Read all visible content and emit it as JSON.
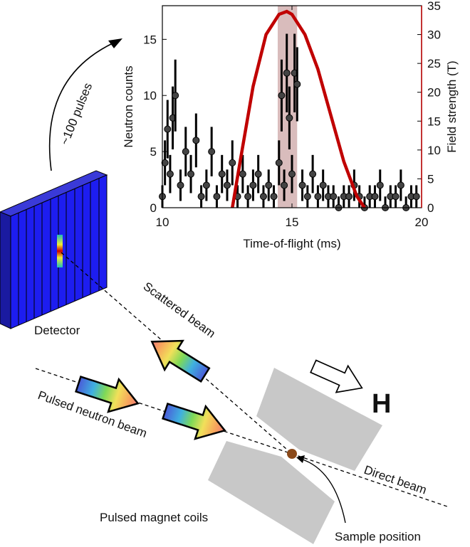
{
  "chart_data": {
    "type": "scatter",
    "xlabel": "Time-of-flight (ms)",
    "ylabel": "Neutron counts",
    "y2label": "Field strength (T)",
    "xlim": [
      10,
      20
    ],
    "xticks": [
      10,
      15,
      20
    ],
    "ylim": [
      0,
      18
    ],
    "yticks": [
      0,
      5,
      10,
      15
    ],
    "y2lim": [
      0,
      35
    ],
    "y2ticks": [
      0,
      5,
      10,
      15,
      20,
      25,
      30,
      35
    ],
    "color": "#444444",
    "x": [
      10.0,
      10.1,
      10.2,
      10.3,
      10.4,
      10.5,
      10.7,
      10.9,
      11.1,
      11.3,
      11.5,
      11.7,
      11.9,
      12.1,
      12.3,
      12.5,
      12.7,
      12.9,
      13.1,
      13.3,
      13.5,
      13.7,
      13.9,
      14.1,
      14.3,
      14.5,
      14.6,
      14.7,
      14.8,
      14.9,
      15.0,
      15.1,
      15.2,
      15.4,
      15.6,
      15.8,
      16.0,
      16.2,
      16.4,
      16.6,
      16.8,
      17.0,
      17.2,
      17.4,
      17.6,
      17.8,
      18.0,
      18.2,
      18.4,
      18.6,
      18.8,
      19.0,
      19.2,
      19.4,
      19.6,
      19.8
    ],
    "values": [
      1,
      4,
      7,
      3,
      8,
      10,
      2,
      5,
      3,
      6,
      1,
      2,
      5,
      1,
      3,
      2,
      4,
      1,
      3,
      1,
      2,
      3,
      1,
      2,
      1,
      4,
      10,
      2,
      12,
      8,
      3,
      12,
      11,
      2,
      1,
      3,
      1,
      2,
      1,
      1,
      0,
      1,
      1,
      2,
      1,
      0,
      1,
      1,
      2,
      0,
      1,
      1,
      2,
      0,
      1,
      1
    ],
    "errors": [
      1,
      2,
      2.6,
      1.7,
      2.8,
      3.2,
      1.4,
      2.2,
      1.7,
      2.4,
      1,
      1.4,
      2.2,
      1,
      1.7,
      1.4,
      2,
      1,
      1.7,
      1,
      1.4,
      1.7,
      1,
      1.4,
      1,
      2,
      3.2,
      1.4,
      3.5,
      2.8,
      1.7,
      3.5,
      3.3,
      1.4,
      1,
      1.7,
      1,
      1.4,
      1,
      1,
      1,
      1,
      1,
      1.4,
      1,
      1,
      1,
      1,
      1.4,
      1,
      1,
      1,
      1.4,
      1,
      1,
      1
    ],
    "overlay": {
      "type": "line",
      "axis": "y2",
      "color": "#c00000",
      "x": [
        12.7,
        13.0,
        13.5,
        14.0,
        14.5,
        14.8,
        15.0,
        15.5,
        16.0,
        16.5,
        17.0,
        17.5,
        17.8
      ],
      "values": [
        0,
        8,
        21,
        30,
        33.5,
        34,
        33.5,
        30,
        24,
        16,
        8,
        2,
        0
      ]
    },
    "highlight": {
      "range": [
        14.45,
        15.2
      ],
      "color": "#d9bcbc"
    }
  },
  "diagram": {
    "pulses": "~100 pulses",
    "detector": "Detector",
    "scattered": "Scattered beam",
    "pulsed_beam": "Pulsed neutron beam",
    "direct": "Direct beam",
    "coils": "Pulsed magnet coils",
    "sample": "Sample position",
    "field": "H"
  }
}
